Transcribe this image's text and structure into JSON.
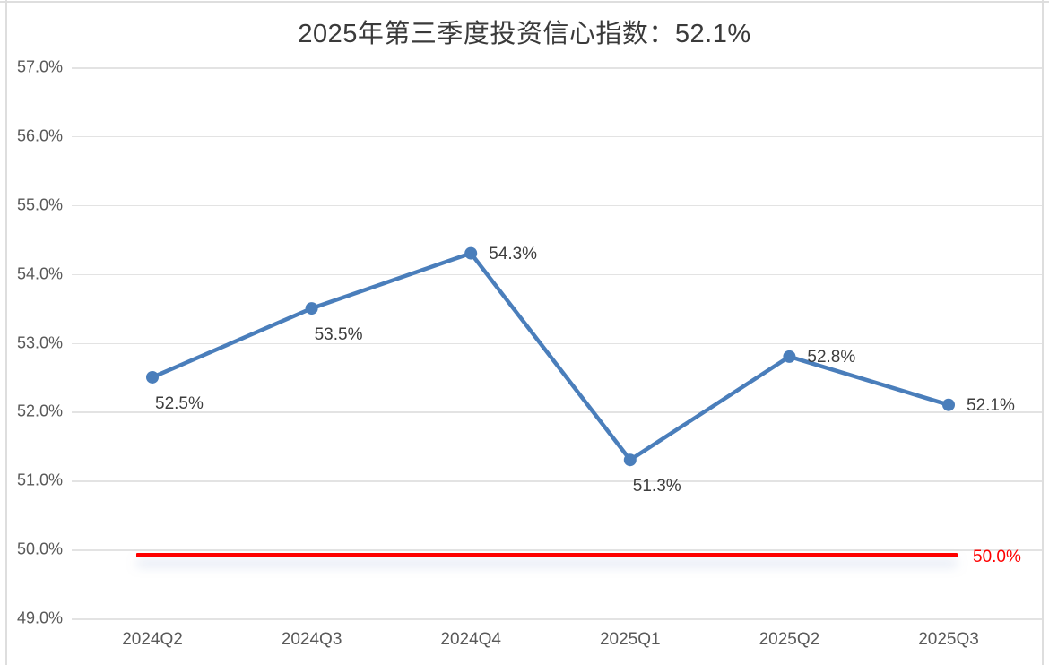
{
  "title": "2025年第三季度投资信心指数：52.1%",
  "chart_data": {
    "type": "line",
    "title": "2025年第三季度投资信心指数：52.1%",
    "categories": [
      "2024Q2",
      "2024Q3",
      "2024Q4",
      "2025Q1",
      "2025Q2",
      "2025Q3"
    ],
    "series": [
      {
        "name": "投资信心指数",
        "values": [
          52.5,
          53.5,
          54.3,
          51.3,
          52.8,
          52.1
        ]
      }
    ],
    "point_labels": [
      "52.5%",
      "53.5%",
      "54.3%",
      "51.3%",
      "52.8%",
      "52.1%"
    ],
    "label_positions": [
      "below",
      "below",
      "right",
      "below",
      "right",
      "right"
    ],
    "y_ticks": [
      57,
      56,
      55,
      54,
      53,
      52,
      51,
      50,
      49
    ],
    "y_tick_labels": [
      "57.0%",
      "56.0%",
      "55.0%",
      "54.0%",
      "53.0%",
      "52.0%",
      "51.0%",
      "50.0%",
      "49.0%"
    ],
    "ylim": [
      49,
      57
    ],
    "xlabel": "",
    "ylabel": "",
    "grid": true,
    "legend": false,
    "reference_line": {
      "value": 50.0,
      "label": "50.0%"
    }
  },
  "colors": {
    "line": "#4a7ebb",
    "marker": "#4a7ebb",
    "reference_line": "#fe0000",
    "reference_label": "#fe0000",
    "grid": "#e3e3e3",
    "axis_text": "#595959",
    "data_label_text": "#3d3d3d",
    "title_text": "#3a3a3a",
    "frame_border": "#dedede",
    "background": "#ffffff"
  }
}
